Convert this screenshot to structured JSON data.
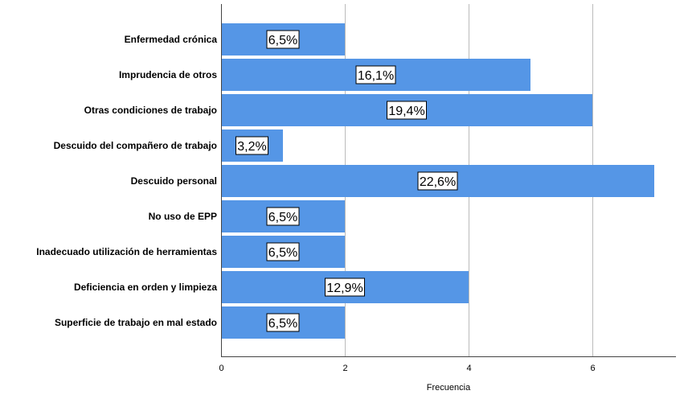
{
  "chart_data": {
    "type": "bar",
    "orientation": "horizontal",
    "title": "",
    "xlabel": "Frecuencia",
    "ylabel": "",
    "categories": [
      "Enfermedad crónica",
      "Imprudencia de otros",
      "Otras condiciones de trabajo",
      "Descuido del compañero de trabajo",
      "Descuido personal",
      "No uso de EPP",
      "Inadecuado utilización de herramientas",
      "Deficiencia en orden y limpieza",
      "Superficie de trabajo en mal estado"
    ],
    "values": [
      2,
      5,
      6,
      1,
      7,
      2,
      2,
      4,
      2
    ],
    "data_labels": [
      "6,5%",
      "16,1%",
      "19,4%",
      "3,2%",
      "22,6%",
      "6,5%",
      "6,5%",
      "12,9%",
      "6,5%"
    ],
    "xlim": [
      0,
      7.35
    ],
    "xticks": [
      "0",
      "2",
      "4",
      "6"
    ],
    "xtick_values": [
      0,
      2,
      4,
      6
    ],
    "grid": "vertical",
    "bar_color": "#5596e6"
  }
}
